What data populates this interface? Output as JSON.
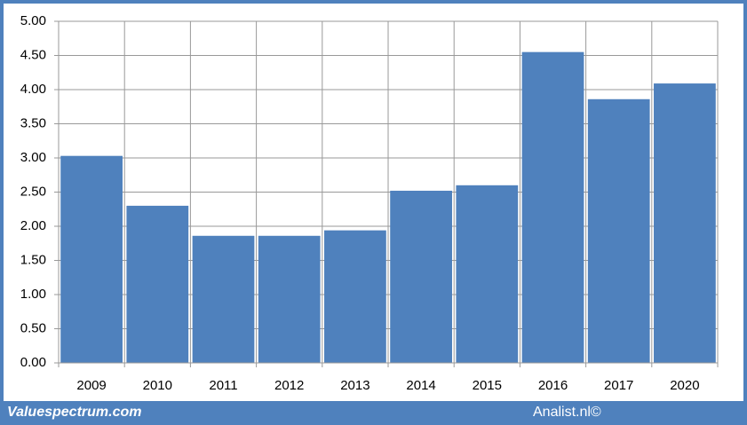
{
  "chart_data": {
    "type": "bar",
    "categories": [
      "2009",
      "2010",
      "2011",
      "2012",
      "2013",
      "2014",
      "2015",
      "2016",
      "2017",
      "2020"
    ],
    "values": [
      3.03,
      2.3,
      1.86,
      1.86,
      1.94,
      2.52,
      2.6,
      4.55,
      3.86,
      4.09
    ],
    "color": "#4f81bd",
    "ylim": [
      0,
      5
    ],
    "yticks": [
      {
        "value": 0,
        "label": "0.00"
      },
      {
        "value": 0.5,
        "label": "0.50"
      },
      {
        "value": 1,
        "label": "1.00"
      },
      {
        "value": 1.5,
        "label": "1.50"
      },
      {
        "value": 2,
        "label": "2.00"
      },
      {
        "value": 2.5,
        "label": "2.50"
      },
      {
        "value": 3,
        "label": "3.00"
      },
      {
        "value": 3.5,
        "label": "3.50"
      },
      {
        "value": 4,
        "label": "4.00"
      },
      {
        "value": 4.5,
        "label": "4.50"
      },
      {
        "value": 5,
        "label": "5.00"
      }
    ],
    "grid": true,
    "footer_left": "Valuespectrum.com",
    "footer_right": "Analist.nl©"
  }
}
